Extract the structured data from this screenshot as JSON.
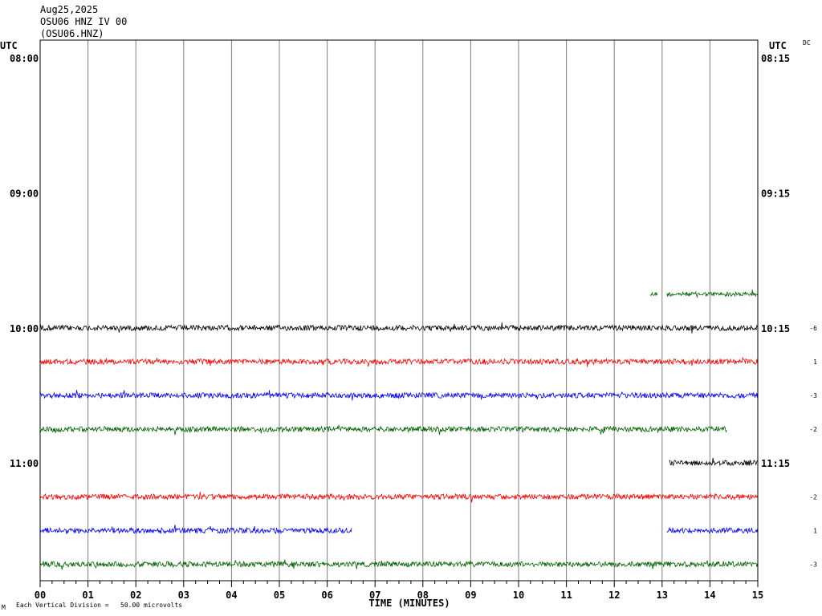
{
  "header": {
    "date": "Aug25,2025",
    "station_line": "OSU06 HNZ IV 00",
    "channel_line": "(OSU06.HNZ)",
    "utc_left": "UTC",
    "utc_right": "UTC",
    "dc_label": "DC"
  },
  "footer": {
    "scale_note": "Each Vertical Division =   50.00 microvolts",
    "corner_mark": "M"
  },
  "chart_data": {
    "type": "line",
    "xlabel": "TIME (MINUTES)",
    "xlim": [
      0,
      15
    ],
    "x_ticks": [
      "00",
      "01",
      "02",
      "03",
      "04",
      "05",
      "06",
      "07",
      "08",
      "09",
      "10",
      "11",
      "12",
      "13",
      "14",
      "15"
    ],
    "rows_total": 16,
    "left_time_labels": [
      {
        "row": 0,
        "label": "08:00"
      },
      {
        "row": 4,
        "label": "09:00"
      },
      {
        "row": 8,
        "label": "10:00"
      },
      {
        "row": 12,
        "label": "11:00"
      }
    ],
    "right_time_labels": [
      {
        "row": 0,
        "label": "08:15"
      },
      {
        "row": 4,
        "label": "09:15"
      },
      {
        "row": 8,
        "label": "10:15"
      },
      {
        "row": 12,
        "label": "11:15"
      }
    ],
    "dc_offsets": [
      {
        "row": 8,
        "value": "-6"
      },
      {
        "row": 9,
        "value": "1"
      },
      {
        "row": 10,
        "value": "-3"
      },
      {
        "row": 11,
        "value": "-2"
      },
      {
        "row": 13,
        "value": "-2"
      },
      {
        "row": 14,
        "value": "1"
      },
      {
        "row": 15,
        "value": "-3"
      }
    ],
    "traces": [
      {
        "row": 7,
        "color": "#006400",
        "segments": [
          [
            12.75,
            12.9
          ],
          [
            13.1,
            15
          ]
        ],
        "amp": 5
      },
      {
        "row": 8,
        "color": "#000000",
        "segments": [
          [
            0,
            15
          ]
        ],
        "amp": 6
      },
      {
        "row": 9,
        "color": "#ff0000",
        "segments": [
          [
            0,
            15
          ]
        ],
        "amp": 6
      },
      {
        "row": 10,
        "color": "#0000ff",
        "segments": [
          [
            0,
            15
          ]
        ],
        "amp": 6
      },
      {
        "row": 11,
        "color": "#006400",
        "segments": [
          [
            0,
            14.35
          ]
        ],
        "amp": 6
      },
      {
        "row": 12,
        "color": "#000000",
        "segments": [
          [
            13.15,
            15
          ]
        ],
        "amp": 6
      },
      {
        "row": 13,
        "color": "#ff0000",
        "segments": [
          [
            0,
            15
          ]
        ],
        "amp": 6
      },
      {
        "row": 14,
        "color": "#0000ff",
        "segments": [
          [
            0,
            6.52
          ],
          [
            13.1,
            15
          ]
        ],
        "amp": 6
      },
      {
        "row": 15,
        "color": "#006400",
        "segments": [
          [
            0,
            15
          ]
        ],
        "amp": 6
      }
    ]
  }
}
